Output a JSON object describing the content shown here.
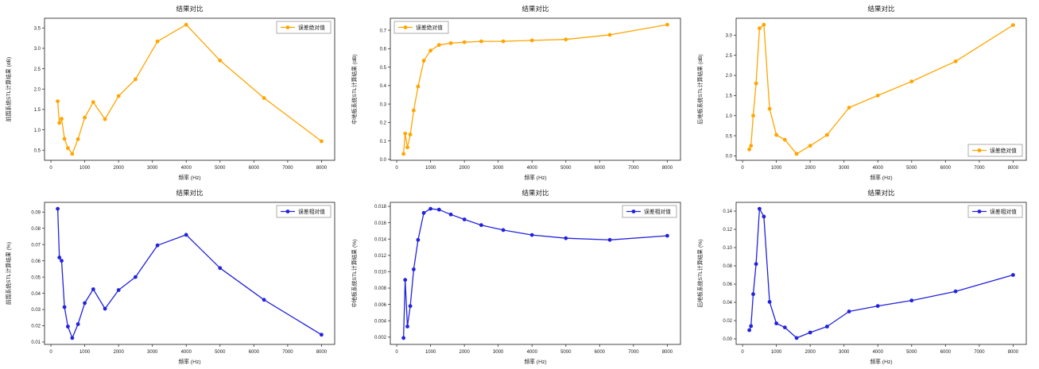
{
  "figure": {
    "background": "#ffffff",
    "rows": 2,
    "cols": 3
  },
  "chart_data": [
    {
      "id": "front-wall-abs-error",
      "type": "line",
      "title": "结果对比",
      "xlabel": "频率 (Hz)",
      "ylabel": "前围系统STL计算结果 (dB)",
      "legend": {
        "label": "误差绝对值",
        "position": "upper-right"
      },
      "color": "#FFA500",
      "x": [
        200,
        250,
        315,
        400,
        500,
        630,
        800,
        1000,
        1250,
        1600,
        2000,
        2500,
        3150,
        4000,
        5000,
        6300,
        8000
      ],
      "y": [
        1.7,
        1.17,
        1.27,
        0.78,
        0.55,
        0.41,
        0.77,
        1.3,
        1.68,
        1.26,
        1.83,
        2.24,
        3.17,
        3.58,
        2.7,
        1.78,
        0.72
      ],
      "xticks": [
        "0",
        "1000",
        "2000",
        "3000",
        "4000",
        "5000",
        "6000",
        "7000",
        "8000"
      ],
      "yticks": [
        "0.5",
        "1.0",
        "1.5",
        "2.0",
        "2.5",
        "3.0",
        "3.5"
      ],
      "grid": false
    },
    {
      "id": "mid-floor-abs-error",
      "type": "line",
      "title": "结果对比",
      "xlabel": "频率 (Hz)",
      "ylabel": "中地板系统STL计算结果 (dB)",
      "legend": {
        "label": "误差绝对值",
        "position": "upper-left"
      },
      "color": "#FFA500",
      "x": [
        200,
        250,
        315,
        400,
        500,
        630,
        800,
        1000,
        1250,
        1600,
        2000,
        2500,
        3150,
        4000,
        5000,
        6300,
        8000
      ],
      "y": [
        0.03,
        0.14,
        0.065,
        0.135,
        0.265,
        0.395,
        0.535,
        0.59,
        0.62,
        0.63,
        0.635,
        0.64,
        0.64,
        0.645,
        0.65,
        0.675,
        0.73
      ],
      "xticks": [
        "0",
        "1000",
        "2000",
        "3000",
        "4000",
        "5000",
        "6000",
        "7000",
        "8000"
      ],
      "yticks": [
        "0.0",
        "0.1",
        "0.2",
        "0.3",
        "0.4",
        "0.5",
        "0.6",
        "0.7"
      ],
      "grid": false
    },
    {
      "id": "rear-floor-abs-error",
      "type": "line",
      "title": "结果对比",
      "xlabel": "频率 (Hz)",
      "ylabel": "后地板系统STL计算结果 (dB)",
      "legend": {
        "label": "误差绝对值",
        "position": "lower-right"
      },
      "color": "#FFA500",
      "x": [
        200,
        250,
        315,
        400,
        500,
        630,
        800,
        1000,
        1250,
        1600,
        2000,
        2500,
        3150,
        4000,
        5000,
        6300,
        8000
      ],
      "y": [
        0.16,
        0.25,
        1.0,
        1.8,
        3.17,
        3.26,
        1.17,
        0.52,
        0.4,
        0.05,
        0.25,
        0.52,
        1.2,
        1.5,
        1.85,
        2.35,
        3.25
      ],
      "xticks": [
        "0",
        "1000",
        "2000",
        "3000",
        "4000",
        "5000",
        "6000",
        "7000",
        "8000"
      ],
      "yticks": [
        "0.0",
        "0.5",
        "1.0",
        "1.5",
        "2.0",
        "2.5",
        "3.0"
      ],
      "grid": false
    },
    {
      "id": "front-wall-rel-error",
      "type": "line",
      "title": "结果对比",
      "xlabel": "频率 (Hz)",
      "ylabel": "前围系统STL计算结果 (%)",
      "legend": {
        "label": "误差相对值",
        "position": "upper-right"
      },
      "color": "#2222DD",
      "x": [
        200,
        250,
        315,
        400,
        500,
        630,
        800,
        1000,
        1250,
        1600,
        2000,
        2500,
        3150,
        4000,
        5000,
        6300,
        8000
      ],
      "y": [
        0.092,
        0.062,
        0.06,
        0.0315,
        0.0195,
        0.0125,
        0.021,
        0.034,
        0.0425,
        0.0305,
        0.042,
        0.05,
        0.0695,
        0.076,
        0.0555,
        0.036,
        0.0145
      ],
      "xticks": [
        "0",
        "1000",
        "2000",
        "3000",
        "4000",
        "5000",
        "6000",
        "7000",
        "8000"
      ],
      "yticks": [
        "0.01",
        "0.02",
        "0.03",
        "0.04",
        "0.05",
        "0.06",
        "0.07",
        "0.08",
        "0.09"
      ],
      "grid": false
    },
    {
      "id": "mid-floor-rel-error",
      "type": "line",
      "title": "结果对比",
      "xlabel": "频率 (Hz)",
      "ylabel": "中地板系统STL计算结果 (%)",
      "legend": {
        "label": "误差相对值",
        "position": "upper-right"
      },
      "color": "#2222DD",
      "x": [
        200,
        250,
        315,
        400,
        500,
        630,
        800,
        1000,
        1250,
        1600,
        2000,
        2500,
        3150,
        4000,
        5000,
        6300,
        8000
      ],
      "y": [
        0.0019,
        0.009,
        0.0033,
        0.0058,
        0.0103,
        0.0139,
        0.0172,
        0.0177,
        0.0176,
        0.017,
        0.0164,
        0.0157,
        0.0151,
        0.0145,
        0.0141,
        0.0139,
        0.0144
      ],
      "xticks": [
        "0",
        "1000",
        "2000",
        "3000",
        "4000",
        "5000",
        "6000",
        "7000",
        "8000"
      ],
      "yticks": [
        "0.002",
        "0.004",
        "0.006",
        "0.008",
        "0.010",
        "0.012",
        "0.014",
        "0.016",
        "0.018"
      ],
      "grid": false
    },
    {
      "id": "rear-floor-rel-error",
      "type": "line",
      "title": "结果对比",
      "xlabel": "频率 (Hz)",
      "ylabel": "后地板系统STL计算结果 (%)",
      "legend": {
        "label": "误差相对值",
        "position": "upper-right"
      },
      "color": "#2222DD",
      "x": [
        200,
        250,
        315,
        400,
        500,
        630,
        800,
        1000,
        1250,
        1600,
        2000,
        2500,
        3150,
        4000,
        5000,
        6300,
        8000
      ],
      "y": [
        0.0095,
        0.014,
        0.049,
        0.082,
        0.1425,
        0.134,
        0.0405,
        0.017,
        0.0125,
        0.001,
        0.007,
        0.0135,
        0.03,
        0.036,
        0.042,
        0.052,
        0.07
      ],
      "xticks": [
        "0",
        "1000",
        "2000",
        "3000",
        "4000",
        "5000",
        "6000",
        "7000",
        "8000"
      ],
      "yticks": [
        "0.00",
        "0.02",
        "0.04",
        "0.06",
        "0.08",
        "0.10",
        "0.12",
        "0.14"
      ],
      "grid": false
    }
  ]
}
